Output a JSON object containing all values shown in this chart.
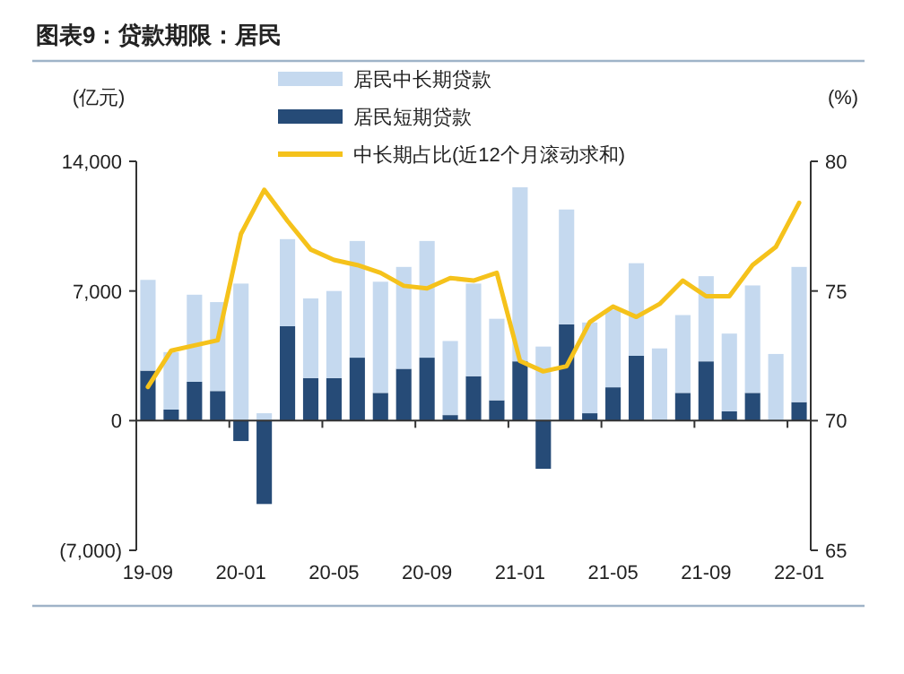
{
  "chart_data": {
    "type": "bar",
    "title": "图表9：贷款期限：居民",
    "ylabel": "(亿元)",
    "y2label": "(%)",
    "stacked": true,
    "categories": [
      "19-09",
      null,
      null,
      null,
      "20-01",
      null,
      null,
      null,
      "20-05",
      null,
      null,
      null,
      "20-09",
      null,
      null,
      null,
      "21-01",
      null,
      null,
      null,
      "21-05",
      null,
      null,
      null,
      "21-09",
      null,
      null,
      null,
      "22-01"
    ],
    "series": [
      {
        "name": "居民短期贷款",
        "color": "#264b77",
        "values": [
          2700,
          600,
          2100,
          1600,
          -1100,
          -4500,
          5100,
          2300,
          2300,
          3400,
          1500,
          2800,
          3400,
          300,
          2400,
          1100,
          3200,
          -2600,
          5200,
          400,
          1800,
          3500,
          null,
          1500,
          3200,
          500,
          1500,
          null,
          1000
        ]
      },
      {
        "name": "居民中长期贷款",
        "color": "#c5d9ef",
        "values": [
          4900,
          3100,
          4700,
          4800,
          7400,
          400,
          4700,
          4300,
          4700,
          6300,
          6000,
          5500,
          6300,
          4000,
          5000,
          4400,
          9400,
          4000,
          6200,
          4900,
          4200,
          5000,
          3900,
          4200,
          4600,
          4200,
          5800,
          3600,
          7300
        ]
      },
      {
        "name": "中长期占比(近12个月滚动求和)",
        "type": "line",
        "axis": "y2",
        "color": "#f5c21b",
        "values": [
          71.3,
          72.7,
          72.9,
          73.1,
          77.2,
          78.9,
          77.7,
          76.6,
          76.2,
          76.0,
          75.7,
          75.2,
          75.1,
          75.5,
          75.4,
          75.7,
          72.3,
          71.9,
          72.1,
          73.8,
          74.4,
          74.0,
          74.5,
          75.4,
          74.8,
          74.8,
          76.0,
          76.7,
          78.4
        ]
      }
    ],
    "ylim": [
      -7000,
      14000
    ],
    "yticks": [
      {
        "value": -7000,
        "label": "(7,000)"
      },
      {
        "value": 0,
        "label": "0"
      },
      {
        "value": 7000,
        "label": "7,000"
      },
      {
        "value": 14000,
        "label": "14,000"
      }
    ],
    "y2lim": [
      65,
      80
    ],
    "y2ticks": [
      65,
      70,
      75,
      80
    ],
    "legend": "top"
  }
}
